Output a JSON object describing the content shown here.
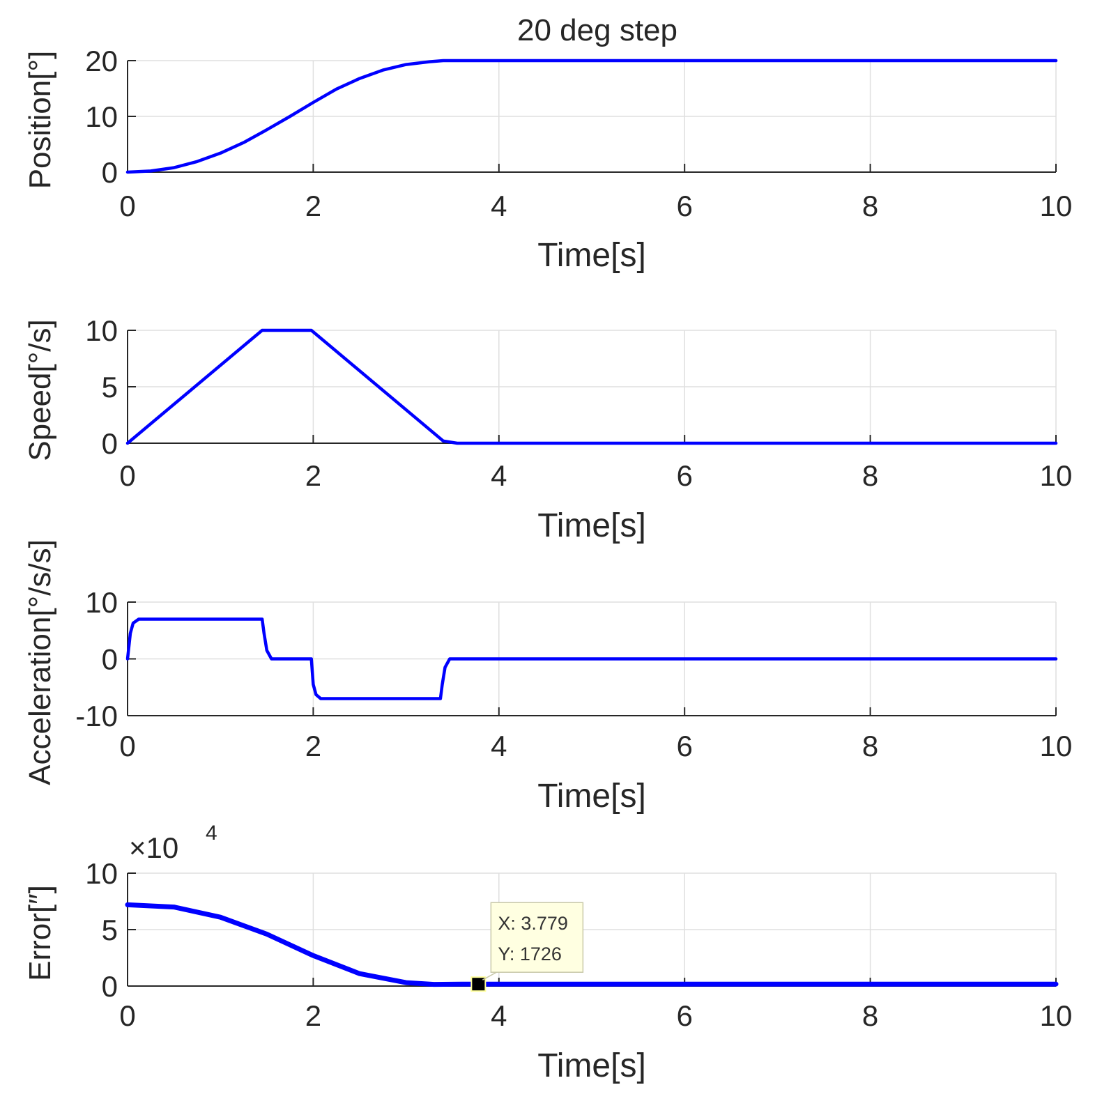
{
  "colors": {
    "line": "#0000ff",
    "grid": "#dfdfdf",
    "axis": "#262626",
    "tooltip_bg": "#ffffe1",
    "tooltip_border": "#c8c8a8",
    "marker": "#000000"
  },
  "chart_data": [
    {
      "type": "line",
      "title": "20 deg step",
      "xlabel": "Time[s]",
      "ylabel": "Position[°]",
      "xlim": [
        0,
        10
      ],
      "ylim": [
        0,
        20
      ],
      "xticks": [
        0,
        2,
        4,
        6,
        8,
        10
      ],
      "xtick_labels": [
        "0",
        "2",
        "4",
        "6",
        "8",
        "10"
      ],
      "yticks": [
        0,
        10,
        20
      ],
      "ytick_labels": [
        "0",
        "10",
        "20"
      ],
      "grid": true,
      "series": [
        {
          "name": "Position",
          "x": [
            0,
            0.25,
            0.5,
            0.75,
            1.0,
            1.25,
            1.5,
            1.75,
            2.0,
            2.25,
            2.5,
            2.75,
            3.0,
            3.25,
            3.4,
            4,
            6,
            8,
            10
          ],
          "y": [
            0,
            0.2,
            0.8,
            1.9,
            3.4,
            5.3,
            7.6,
            10.0,
            12.5,
            14.9,
            16.8,
            18.3,
            19.3,
            19.8,
            20,
            20,
            20,
            20,
            20
          ]
        }
      ]
    },
    {
      "type": "line",
      "xlabel": "Time[s]",
      "ylabel": "Speed[°/s]",
      "xlim": [
        0,
        10
      ],
      "ylim": [
        0,
        10
      ],
      "xticks": [
        0,
        2,
        4,
        6,
        8,
        10
      ],
      "xtick_labels": [
        "0",
        "2",
        "4",
        "6",
        "8",
        "10"
      ],
      "yticks": [
        0,
        5,
        10
      ],
      "ytick_labels": [
        "0",
        "5",
        "10"
      ],
      "grid": true,
      "series": [
        {
          "name": "Speed",
          "x": [
            0,
            1.45,
            1.98,
            3.4,
            3.55,
            10
          ],
          "y": [
            0,
            10,
            10,
            0.2,
            0,
            0
          ]
        }
      ]
    },
    {
      "type": "line",
      "xlabel": "Time[s]",
      "ylabel": "Acceleration[°/s/s]",
      "xlim": [
        0,
        10
      ],
      "ylim": [
        -10,
        10
      ],
      "xticks": [
        0,
        2,
        4,
        6,
        8,
        10
      ],
      "xtick_labels": [
        "0",
        "2",
        "4",
        "6",
        "8",
        "10"
      ],
      "yticks": [
        -10,
        0,
        10
      ],
      "ytick_labels": [
        "-10",
        "0",
        "10"
      ],
      "grid": true,
      "series": [
        {
          "name": "Acceleration",
          "x": [
            0,
            0.03,
            0.06,
            0.12,
            1.45,
            1.47,
            1.5,
            1.55,
            1.98,
            2.0,
            2.03,
            2.08,
            3.37,
            3.39,
            3.42,
            3.47,
            10
          ],
          "y": [
            0,
            4.5,
            6.3,
            7,
            7,
            4.5,
            1.5,
            0,
            0,
            -4.5,
            -6.3,
            -7,
            -7,
            -4.5,
            -1.5,
            0,
            0
          ]
        }
      ]
    },
    {
      "type": "line",
      "xlabel": "Time[s]",
      "ylabel": "Error[″]",
      "exponent": "×10",
      "exponent_power": "4",
      "xlim": [
        0,
        10
      ],
      "ylim": [
        0,
        10
      ],
      "xticks": [
        0,
        2,
        4,
        6,
        8,
        10
      ],
      "xtick_labels": [
        "0",
        "2",
        "4",
        "6",
        "8",
        "10"
      ],
      "yticks": [
        0,
        5,
        10
      ],
      "ytick_labels": [
        "0",
        "5",
        "10"
      ],
      "grid": true,
      "series": [
        {
          "name": "Error",
          "x": [
            0,
            0.5,
            1.0,
            1.5,
            2.0,
            2.5,
            3.0,
            3.3,
            3.6,
            3.779,
            10
          ],
          "y": [
            7.2,
            7.0,
            6.1,
            4.6,
            2.7,
            1.1,
            0.3,
            0.15,
            0.17,
            0.1726,
            0.17
          ]
        }
      ],
      "datatip": {
        "x": 3.779,
        "y": 0.1726,
        "x_label": "X: 3.779",
        "y_label": "Y: 1726"
      }
    }
  ]
}
